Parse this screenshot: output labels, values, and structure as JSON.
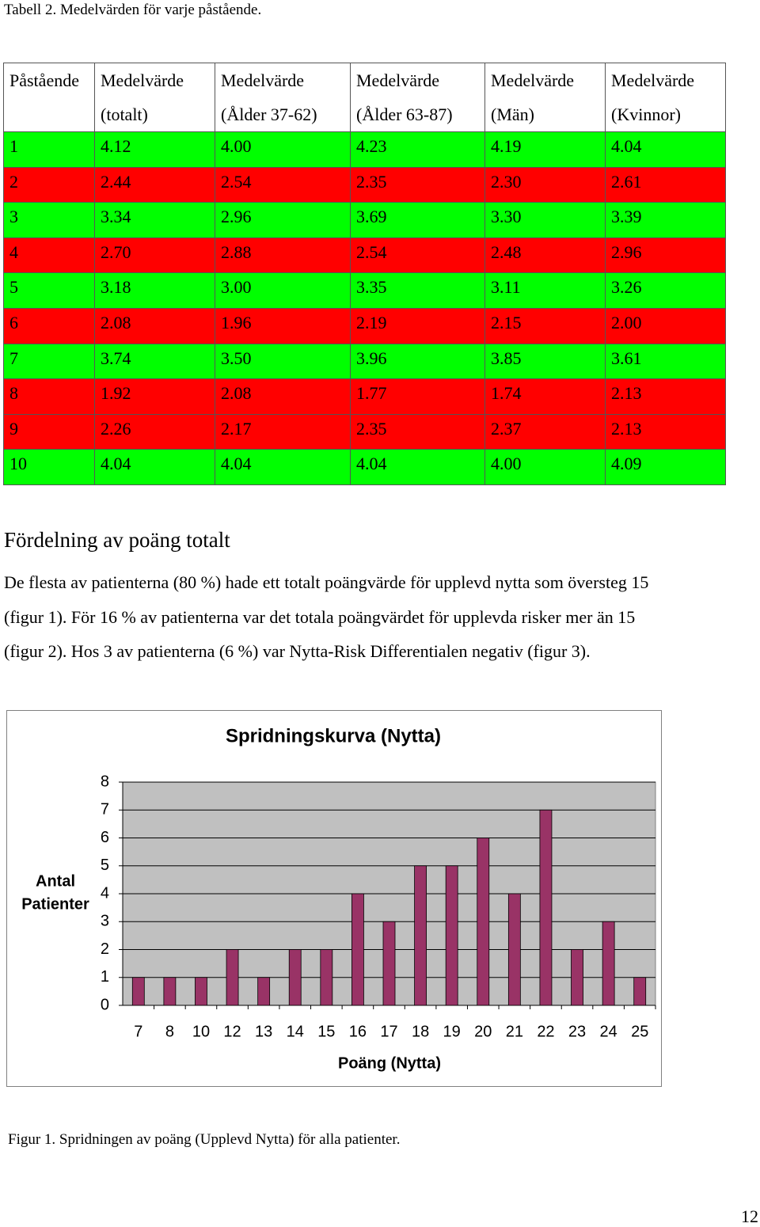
{
  "caption": "Tabell 2. Medelvärden för varje påstående.",
  "table": {
    "header": [
      [
        "Påstående"
      ],
      [
        "Medelvärde",
        "(totalt)"
      ],
      [
        "Medelvärde",
        "(Ålder 37-62)"
      ],
      [
        "Medelvärde",
        "(Ålder 63-87)"
      ],
      [
        "Medelvärde",
        "(Män)"
      ],
      [
        "Medelvärde",
        "(Kvinnor)"
      ]
    ],
    "rows": [
      {
        "color": "#00ff00",
        "cells": [
          "1",
          "4.12",
          "4.00",
          "4.23",
          "4.19",
          "4.04"
        ]
      },
      {
        "color": "#ff0000",
        "cells": [
          "2",
          "2.44",
          "2.54",
          "2.35",
          "2.30",
          "2.61"
        ]
      },
      {
        "color": "#00ff00",
        "cells": [
          "3",
          "3.34",
          "2.96",
          "3.69",
          "3.30",
          "3.39"
        ]
      },
      {
        "color": "#ff0000",
        "cells": [
          "4",
          "2.70",
          "2.88",
          "2.54",
          "2.48",
          "2.96"
        ]
      },
      {
        "color": "#00ff00",
        "cells": [
          "5",
          "3.18",
          "3.00",
          "3.35",
          "3.11",
          "3.26"
        ]
      },
      {
        "color": "#ff0000",
        "cells": [
          "6",
          "2.08",
          "1.96",
          "2.19",
          "2.15",
          "2.00"
        ]
      },
      {
        "color": "#00ff00",
        "cells": [
          "7",
          "3.74",
          "3.50",
          "3.96",
          "3.85",
          "3.61"
        ]
      },
      {
        "color": "#ff0000",
        "cells": [
          "8",
          "1.92",
          "2.08",
          "1.77",
          "1.74",
          "2.13"
        ]
      },
      {
        "color": "#ff0000",
        "cells": [
          "9",
          "2.26",
          "2.17",
          "2.35",
          "2.37",
          "2.13"
        ]
      },
      {
        "color": "#00ff00",
        "cells": [
          "10",
          "4.04",
          "4.04",
          "4.04",
          "4.00",
          "4.09"
        ]
      }
    ]
  },
  "section": {
    "heading": "Fördelning av poäng totalt",
    "lines": [
      "De flesta av patienterna (80 %) hade ett totalt poängvärde för upplevd nytta som översteg 15",
      "(figur 1). För 16 % av patienterna var det totala poängvärdet för upplevda risker mer än 15",
      "(figur 2). Hos 3 av patienterna (6 %) var Nytta-Risk Differentialen negativ (figur 3)."
    ]
  },
  "chart_data": {
    "type": "bar",
    "title": "Spridningskurva (Nytta)",
    "x_label": "Poäng (Nytta)",
    "y_label": [
      "Antal",
      "Patienter"
    ],
    "categories": [
      "7",
      "8",
      "10",
      "12",
      "13",
      "14",
      "15",
      "16",
      "17",
      "18",
      "19",
      "20",
      "21",
      "22",
      "23",
      "24",
      "25"
    ],
    "values": [
      1,
      1,
      1,
      2,
      1,
      2,
      2,
      4,
      3,
      5,
      5,
      6,
      4,
      7,
      2,
      3,
      1
    ],
    "color": "#993366",
    "ylim": [
      0,
      8
    ],
    "yticks": [
      0,
      1,
      2,
      3,
      4,
      5,
      6,
      7,
      8
    ],
    "grid": true
  },
  "figure_caption": "Figur 1. Spridningen av poäng (Upplevd Nytta) för alla patienter.",
  "page_number": "12"
}
